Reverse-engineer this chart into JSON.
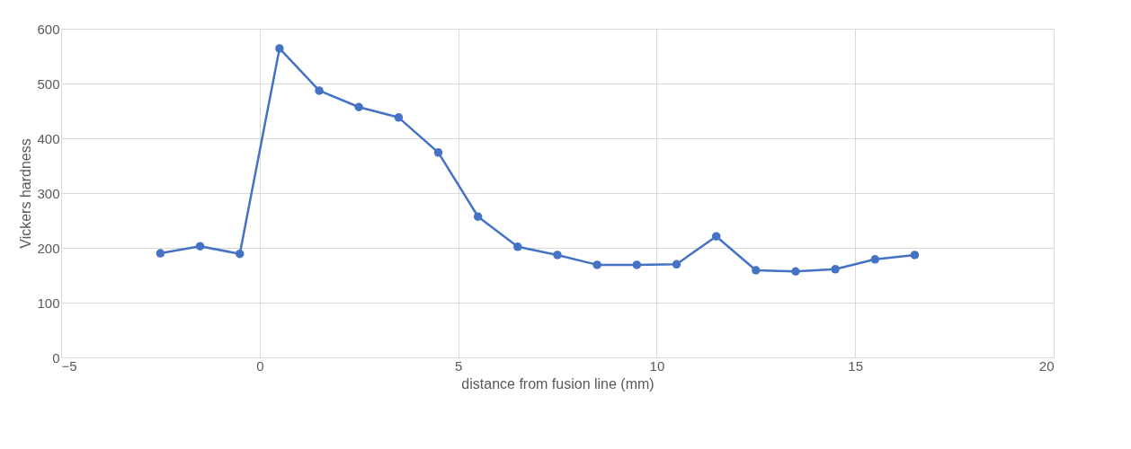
{
  "chart_data": {
    "type": "line",
    "xlabel": "distance from fusion line (mm)",
    "ylabel": "Vickers hardness",
    "x": [
      -2.5,
      -1.5,
      -0.5,
      0.5,
      1.5,
      2.5,
      3.5,
      4.5,
      5.5,
      6.5,
      7.5,
      8.5,
      9.5,
      10.5,
      11.5,
      12.5,
      13.5,
      14.5,
      15.5,
      16.5
    ],
    "series": [
      {
        "color": "#4472c4",
        "values": [
          190,
          203,
          189,
          564,
          487,
          457,
          438,
          374,
          257,
          202,
          187,
          169,
          169,
          170,
          221,
          159,
          157,
          161,
          179,
          187
        ]
      }
    ],
    "xlim": [
      -5,
      20
    ],
    "xticks": [
      -5,
      0,
      5,
      10,
      15,
      20
    ],
    "ylim": [
      0,
      600
    ],
    "yticks": [
      0,
      100,
      200,
      300,
      400,
      500,
      600
    ],
    "grid": true,
    "legend": false,
    "marker": "circle",
    "line_style": "solid"
  }
}
